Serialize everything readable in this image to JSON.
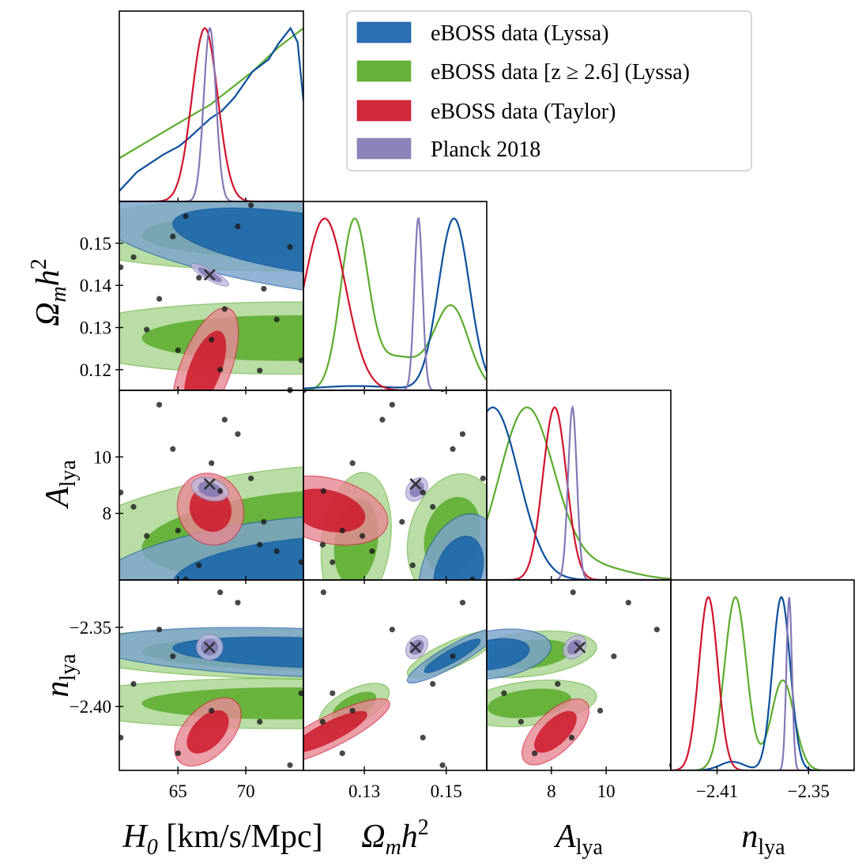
{
  "chart_data": {
    "type": "corner",
    "params": [
      {
        "key": "H0",
        "range": [
          60.67,
          74.25
        ],
        "xticks": [
          65,
          70
        ],
        "xtick_labels": [
          "65",
          "70"
        ],
        "yticks": [],
        "ytick_labels": [],
        "label": {
          "main": "H",
          "sub": "0",
          "suffix": " [km/s/Mpc]",
          "sup": ""
        }
      },
      {
        "key": "Om",
        "range": [
          0.1151,
          0.1599
        ],
        "xticks": [
          0.13,
          0.15
        ],
        "xtick_labels": [
          "0.13",
          "0.15"
        ],
        "yticks": [
          0.15,
          0.14,
          0.13,
          0.12
        ],
        "ytick_labels": [
          "0.15",
          "0.14",
          "0.13",
          "0.12"
        ],
        "label": {
          "main": "Ω",
          "sub": "m",
          "suffix": "h",
          "sup": "2"
        }
      },
      {
        "key": "A",
        "range": [
          5.64,
          12.36
        ],
        "xticks": [
          8,
          10
        ],
        "xtick_labels": [
          "8",
          "10"
        ],
        "yticks": [
          10,
          8
        ],
        "ytick_labels": [
          "10",
          "8"
        ],
        "label": {
          "main": "A",
          "sub": "lya",
          "suffix": "",
          "sup": ""
        }
      },
      {
        "key": "n",
        "range": [
          -2.4403,
          -2.3201
        ],
        "xticks": [
          -2.41,
          -2.35
        ],
        "xtick_labels": [
          "−2.41",
          "−2.35"
        ],
        "yticks": [
          -2.35,
          -2.4
        ],
        "ytick_labels": [
          "−2.35",
          "−2.40"
        ],
        "label": {
          "main": "n",
          "sub": "lya",
          "suffix": "",
          "sup": ""
        }
      }
    ],
    "legend": {
      "placement": "top-right",
      "entries": [
        {
          "series": "blue",
          "label": "eBOSS data (Lyssa)"
        },
        {
          "series": "green",
          "label": "eBOSS data [z ≥ 2.6] (Lyssa)"
        },
        {
          "series": "red",
          "label": "eBOSS data (Taylor)"
        },
        {
          "series": "purple",
          "label": "Planck 2018"
        }
      ]
    },
    "series": {
      "blue": {
        "name": "eBOSS data (Lyssa)",
        "line": "#0b4f9c",
        "inner": "#1461a8",
        "outer": "#7ba3cc"
      },
      "green": {
        "name": "eBOSS data [z ≥ 2.6] (Lyssa)",
        "line": "#5aac2c",
        "inner": "#55a925",
        "outer": "#a9d591"
      },
      "red": {
        "name": "eBOSS data (Taylor)",
        "line": "#d1132d",
        "inner": "#cc1426",
        "outer": "#e68a95"
      },
      "purple": {
        "name": "Planck 2018",
        "line": "#8378b6",
        "inner": "#7f76b2",
        "outer": "#bfbbdc"
      }
    },
    "draw_order": [
      "green",
      "blue",
      "red",
      "purple"
    ],
    "contour_levels": [
      "68%",
      "95%"
    ],
    "marginals": {
      "H0": {
        "blue": {
          "points": [
            [
              60.67,
              0.06
            ],
            [
              61.97,
              0.17
            ],
            [
              63.9,
              0.27
            ],
            [
              65.1,
              0.32
            ],
            [
              65.86,
              0.37
            ],
            [
              67.4,
              0.48
            ],
            [
              68.2,
              0.52
            ],
            [
              69.16,
              0.6
            ],
            [
              70.5,
              0.75
            ],
            [
              71.68,
              0.82
            ],
            [
              72.4,
              0.91
            ],
            [
              73.3,
              1.0
            ],
            [
              73.82,
              0.92
            ],
            [
              74.25,
              0.58
            ]
          ]
        },
        "green": {
          "points": [
            [
              60.67,
              0.25
            ],
            [
              65.1,
              0.455
            ],
            [
              67.4,
              0.56
            ],
            [
              70.5,
              0.75
            ],
            [
              72.4,
              0.89
            ],
            [
              74.25,
              1.0
            ]
          ]
        },
        "red": {
          "gauss": [
            [
              1,
              66.98,
              0.95
            ]
          ]
        },
        "purple": {
          "gauss": [
            [
              1,
              67.35,
              0.45
            ]
          ]
        }
      },
      "Om": {
        "blue": {
          "gauss": [
            [
              1,
              0.1519,
              0.0038
            ],
            [
              0.025,
              0.128,
              0.01
            ]
          ]
        },
        "green": {
          "gauss": [
            [
              1,
              0.1275,
              0.0033
            ],
            [
              0.5,
              0.1513,
              0.0042
            ],
            [
              0.2,
              0.138,
              0.006
            ]
          ]
        },
        "red": {
          "gauss": [
            [
              1,
              0.1203,
              0.0051
            ]
          ]
        },
        "purple": {
          "gauss": [
            [
              1,
              0.1432,
              0.001
            ]
          ]
        }
      },
      "A": {
        "blue": {
          "gauss": [
            [
              1,
              5.86,
              0.95
            ]
          ]
        },
        "green": {
          "gauss": [
            [
              1,
              7.09,
              1.0
            ],
            [
              0.08,
              9.5,
              1.3
            ]
          ]
        },
        "red": {
          "gauss": [
            [
              1,
              8.12,
              0.43
            ]
          ]
        },
        "purple": {
          "gauss": [
            [
              1,
              8.77,
              0.16
            ]
          ]
        }
      },
      "n": {
        "blue": {
          "gauss": [
            [
              1,
              -2.3678,
              0.0058
            ],
            [
              0.05,
              -2.4,
              0.008
            ]
          ]
        },
        "green": {
          "gauss": [
            [
              1,
              -2.3979,
              0.0072
            ],
            [
              0.52,
              -2.3669,
              0.0075
            ]
          ]
        },
        "red": {
          "gauss": [
            [
              1,
              -2.4157,
              0.0062
            ]
          ]
        },
        "purple": {
          "gauss": [
            [
              1,
              -2.3627,
              0.0018
            ]
          ]
        }
      }
    },
    "contours": {
      "H0|Om": {
        "green": [
          [
            73,
            0.1275,
            7,
            0.0035,
            0
          ],
          [
            73,
            0.152,
            7,
            0.0035,
            0
          ]
        ],
        "blue": [
          [
            74.5,
            0.15,
            6.5,
            0.0055,
            -0.55
          ]
        ],
        "red": [
          [
            67.0,
            0.12,
            1.0,
            0.006,
            0.6
          ]
        ],
        "purple": [
          [
            67.35,
            0.1425,
            0.57,
            0.0011,
            -0.85
          ]
        ]
      },
      "H0|A": {
        "green": [
          [
            73,
            7.3,
            7,
            1.0,
            0.35
          ]
        ],
        "blue": [
          [
            74.5,
            5.9,
            6.5,
            0.85,
            0.3
          ]
        ],
        "red": [
          [
            67.4,
            8.15,
            1.0,
            0.52,
            -0.1
          ]
        ],
        "purple": [
          [
            67.35,
            8.85,
            0.55,
            0.17,
            -0.3
          ]
        ]
      },
      "H0|n": {
        "green": [
          [
            73,
            -2.398,
            7,
            0.0065,
            0
          ],
          [
            73,
            -2.367,
            7,
            0.0065,
            -0.2
          ]
        ],
        "blue": [
          [
            74.5,
            -2.366,
            6.5,
            0.0065,
            -0.3
          ]
        ],
        "red": [
          [
            67.2,
            -2.416,
            1.0,
            0.0088,
            0.5
          ]
        ],
        "purple": [
          [
            67.33,
            -2.3625,
            0.4,
            0.0033,
            0
          ]
        ]
      },
      "Om|A": {
        "green": [
          [
            0.128,
            7.0,
            0.0035,
            1.0,
            0.2
          ],
          [
            0.1515,
            7.2,
            0.0045,
            0.9,
            0.2
          ]
        ],
        "blue": [
          [
            0.153,
            5.9,
            0.004,
            0.85,
            0.3
          ]
        ],
        "red": [
          [
            0.121,
            8.1,
            0.006,
            0.5,
            -0.3
          ]
        ],
        "purple": [
          [
            0.1428,
            8.85,
            0.0011,
            0.17,
            0.3
          ]
        ]
      },
      "Om|n": {
        "green": [
          [
            0.1275,
            -2.4,
            0.0035,
            0.006,
            0.6
          ],
          [
            0.1515,
            -2.367,
            0.0045,
            0.006,
            0.8
          ]
        ],
        "blue": [
          [
            0.1515,
            -2.368,
            0.0045,
            0.007,
            0.9
          ]
        ],
        "red": [
          [
            0.1215,
            -2.416,
            0.006,
            0.0085,
            0.85
          ]
        ],
        "purple": [
          [
            0.1428,
            -2.3625,
            0.0011,
            0.003,
            0.3
          ]
        ]
      },
      "A|n": {
        "green": [
          [
            7.2,
            -2.398,
            1.0,
            0.006,
            0.3
          ],
          [
            7.2,
            -2.367,
            1.0,
            0.006,
            0.3
          ]
        ],
        "blue": [
          [
            5.9,
            -2.367,
            0.85,
            0.0065,
            0.3
          ]
        ],
        "red": [
          [
            8.15,
            -2.416,
            0.5,
            0.0085,
            0.65
          ]
        ],
        "purple": [
          [
            8.85,
            -2.3625,
            0.17,
            0.003,
            0.3
          ]
        ]
      }
    },
    "sample_points": [
      {
        "H0": 60.77,
        "Om": 0.1443,
        "A": 8.74,
        "n": -2.4196
      },
      {
        "H0": 61.72,
        "Om": 0.1467,
        "A": 8.23,
        "n": -2.3857
      },
      {
        "H0": 62.69,
        "Om": 0.1295,
        "A": 7.2,
        "n": null
      },
      {
        "H0": 63.62,
        "Om": 0.1368,
        "A": 11.85,
        "n": -2.3514
      },
      {
        "H0": 64.62,
        "Om": 0.1516,
        "A": 10.28,
        "n": -2.3683
      },
      {
        "H0": 65.0,
        "Om": 0.1246,
        "A": 7.39,
        "n": -2.4295
      },
      {
        "H0": 65.57,
        "Om": 0.1564,
        "A": 5.66,
        "n": null
      },
      {
        "H0": 66.54,
        "Om": 0.1418,
        "A": 6.16,
        "n": null
      },
      {
        "H0": 67.47,
        "Om": 0.1271,
        "A": 9.78,
        "n": -2.4026
      },
      {
        "H0": 68.11,
        "Om": 0.12,
        "A": 8.79,
        "n": -2.3279
      },
      {
        "H0": 68.44,
        "Om": 0.1344,
        "A": 11.32,
        "n": null
      },
      {
        "H0": 69.41,
        "Om": 0.154,
        "A": 10.81,
        "n": -2.3344
      },
      {
        "H0": 70.38,
        "Om": 0.159,
        "A": 9.24,
        "n": null
      },
      {
        "H0": 71.03,
        "Om": 0.1198,
        "A": 6.89,
        "n": -2.4096
      },
      {
        "H0": 71.33,
        "Om": 0.1392,
        "A": 7.7,
        "n": null
      },
      {
        "H0": 72.28,
        "Om": 0.1319,
        "A": 6.66,
        "n": null
      },
      {
        "H0": 73.26,
        "Om": 0.1491,
        "A": 12.4,
        "n": -2.437
      },
      {
        "H0": 74.09,
        "Om": 0.1222,
        "A": 6.27,
        "n": -2.3916
      },
      {
        "H0": 73.26,
        "Om": 0.1152,
        "A": 12.36,
        "n": null
      }
    ],
    "marker": {
      "symbol": "x",
      "H0": 67.33,
      "Om": 0.1425,
      "A": 9.04,
      "n": -2.3627,
      "color": "#333333"
    }
  }
}
